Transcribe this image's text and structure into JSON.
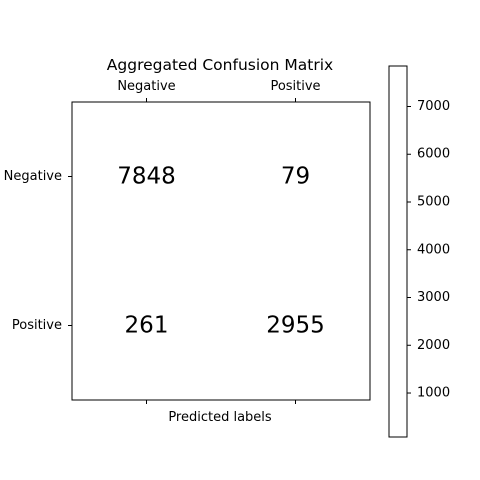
{
  "chart_data": {
    "type": "heatmap",
    "title": "Aggregated Confusion Matrix",
    "xlabel": "Predicted labels",
    "ylabel": "",
    "x_categories": [
      "Negative",
      "Positive"
    ],
    "y_categories": [
      "Negative",
      "Positive"
    ],
    "matrix": [
      [
        7848,
        79
      ],
      [
        261,
        2955
      ]
    ],
    "cell_labels": [
      [
        "7848",
        "79"
      ],
      [
        "261",
        "2955"
      ]
    ],
    "colorbar": {
      "range": [
        79,
        7848
      ],
      "ticks": [
        1000,
        2000,
        3000,
        4000,
        5000,
        6000,
        7000
      ],
      "tick_labels": [
        "1000",
        "2000",
        "3000",
        "4000",
        "5000",
        "6000",
        "7000"
      ]
    },
    "x_ticks_position": "top",
    "grid": false,
    "cell_color": "#ffffff",
    "colorbar_color": "#ffffff"
  }
}
